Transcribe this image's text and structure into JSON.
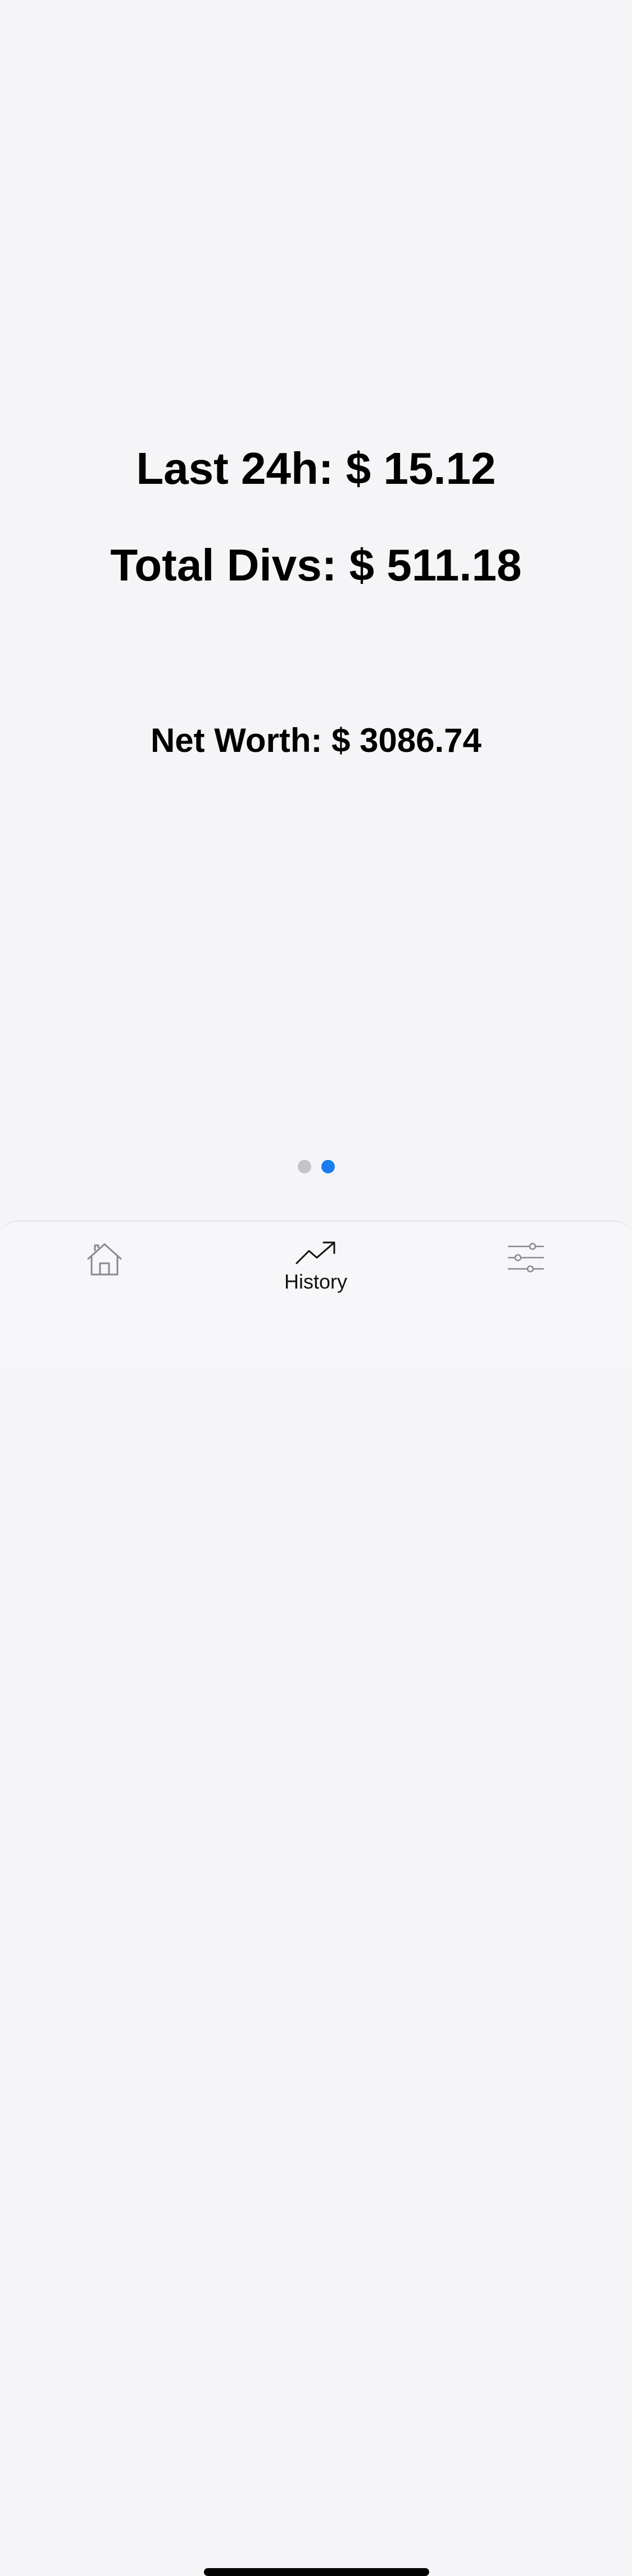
{
  "stats": {
    "last_24h": "Last 24h: $ 15.12",
    "total_divs": "Total Divs: $ 511.18",
    "net_worth": "Net Worth: $ 3086.74"
  },
  "pager": {
    "count": 2,
    "active_index": 1
  },
  "tab_bar": {
    "tabs": [
      {
        "id": "home",
        "icon": "home-icon",
        "label": ""
      },
      {
        "id": "history",
        "icon": "trending-up-icon",
        "label": "History",
        "selected": true
      },
      {
        "id": "settings",
        "icon": "sliders-icon",
        "label": ""
      }
    ]
  },
  "colors": {
    "background": "#f5f5f7",
    "accent": "#1b7cf2",
    "inactive_dot": "#c4c4c6",
    "text": "#000000"
  }
}
